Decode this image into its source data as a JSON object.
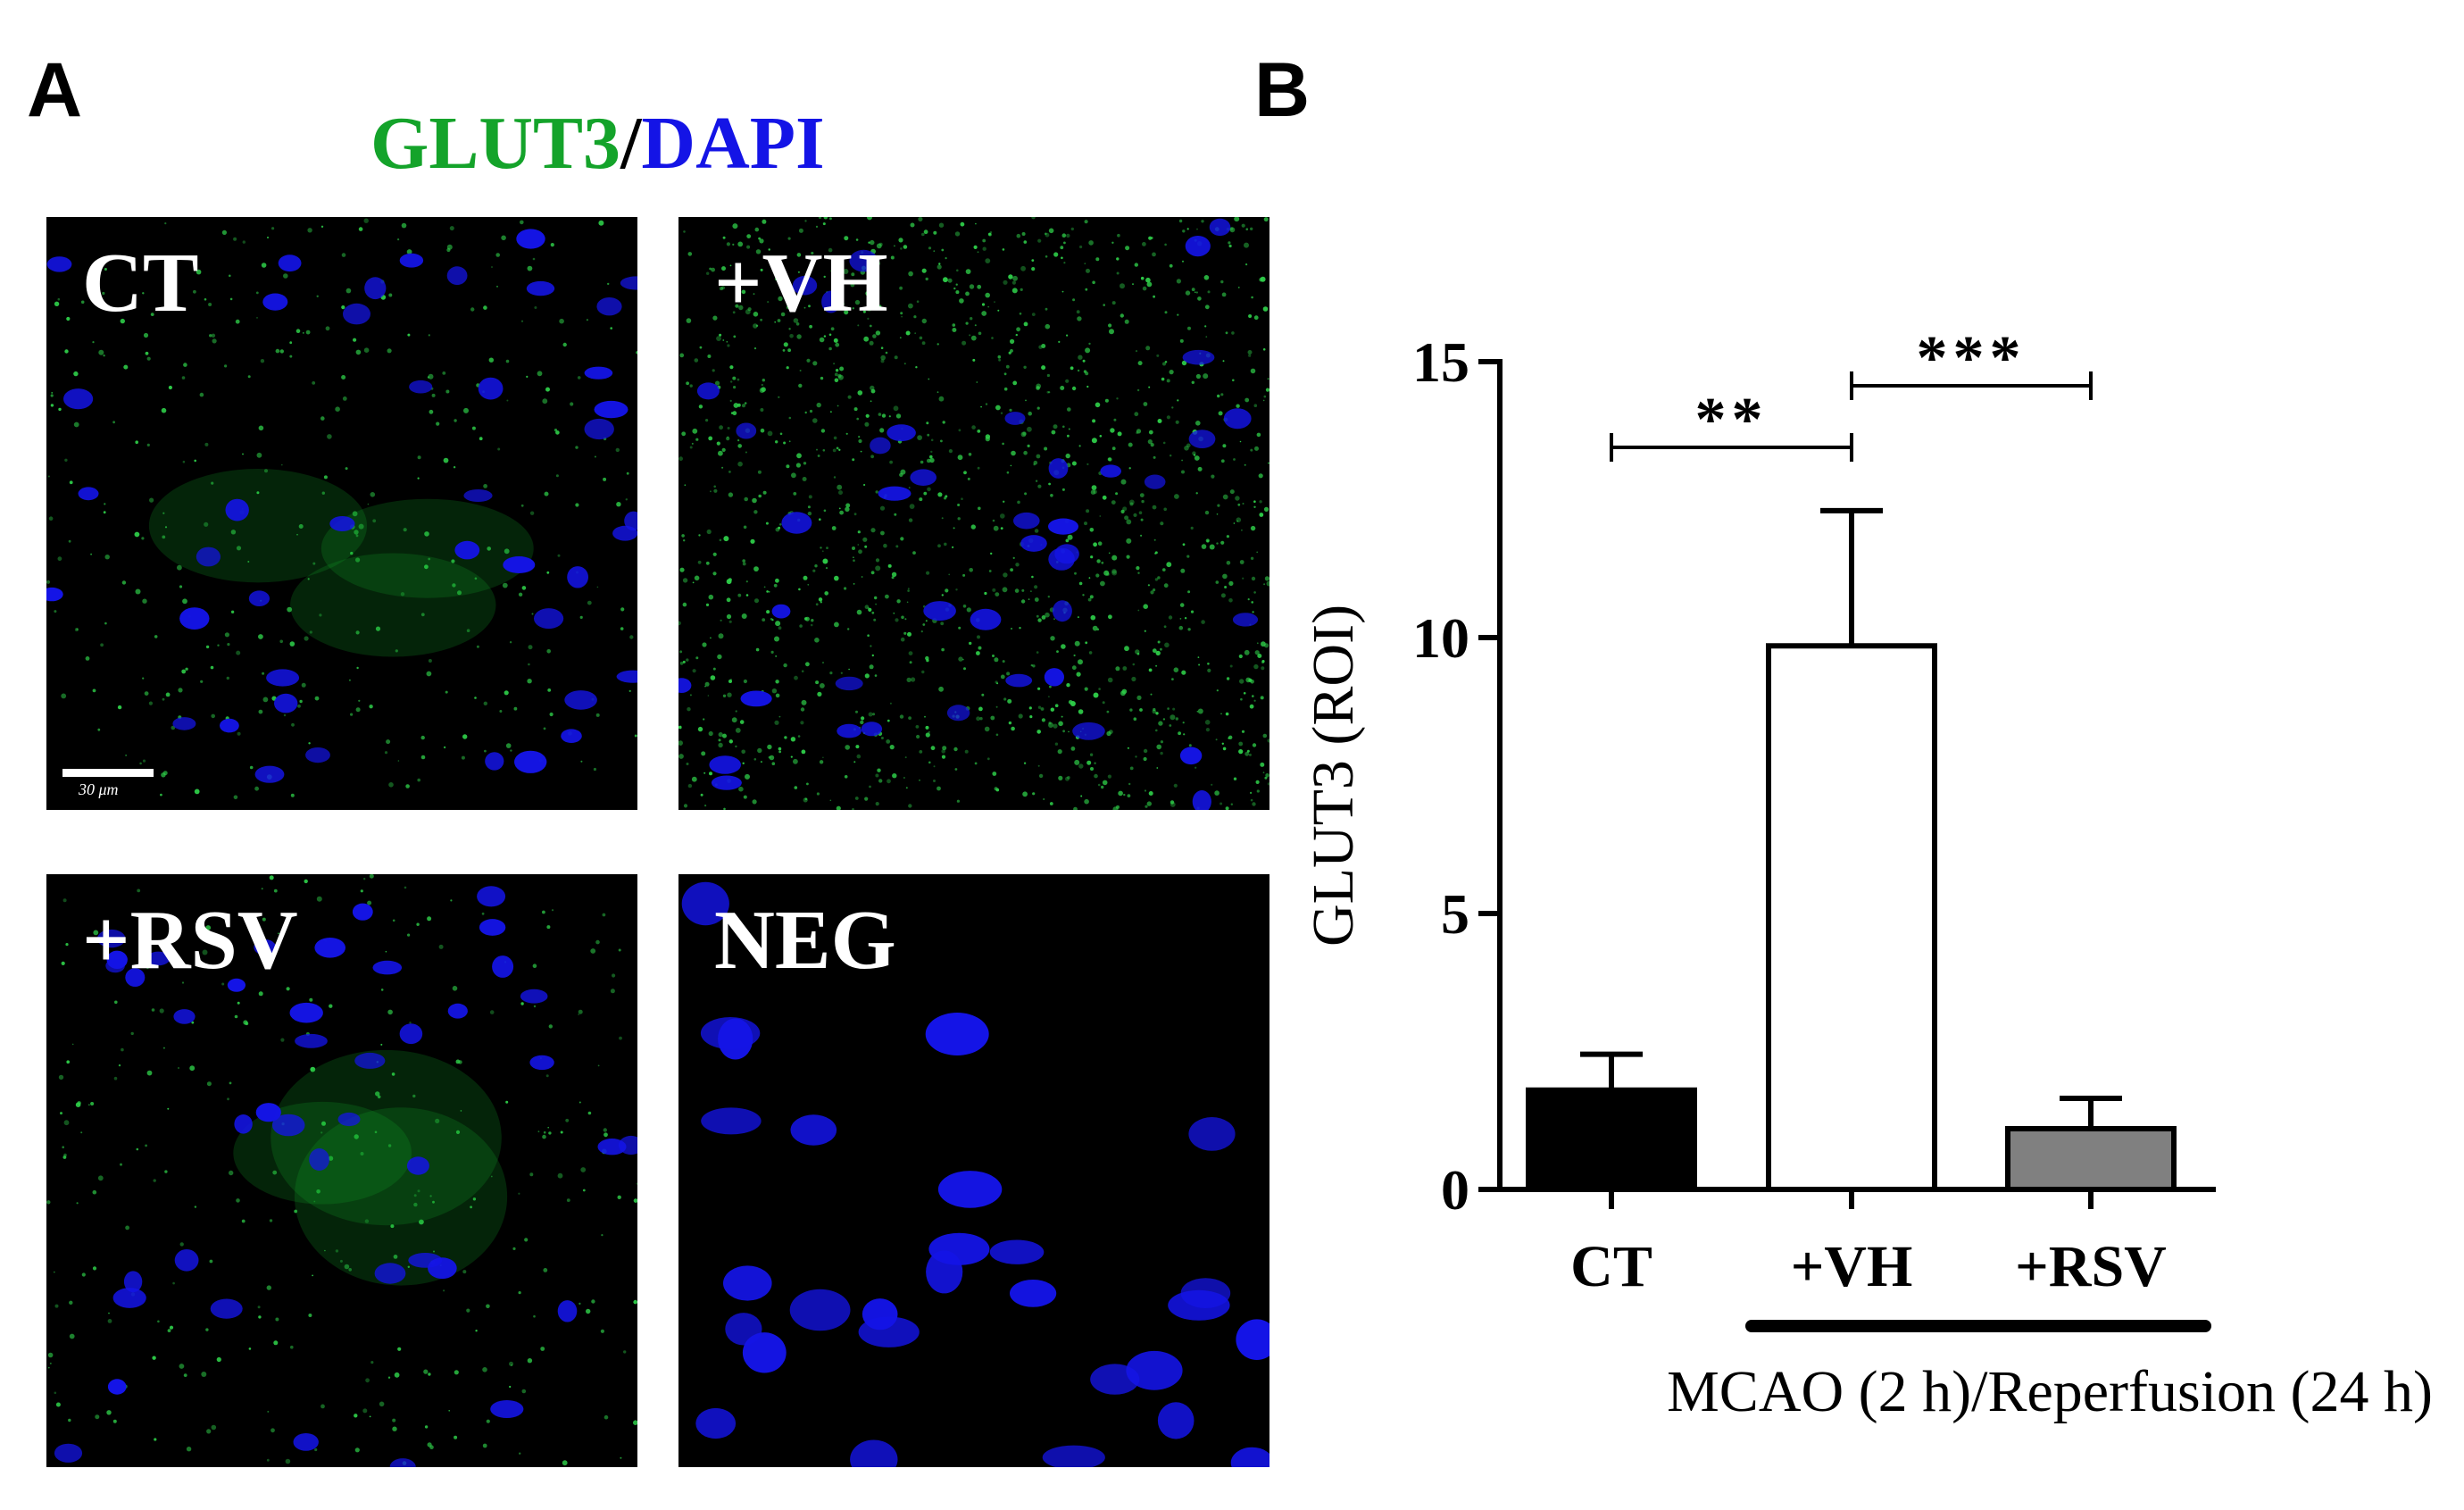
{
  "panels": {
    "a_label": "A",
    "b_label": "B"
  },
  "stain_title": {
    "marker": "GLUT3",
    "separator": "/",
    "counterstain": "DAPI"
  },
  "colors": {
    "marker_green": "#14a32a",
    "dapi_blue": "#1414e6",
    "bar_ct": "#000000",
    "bar_vh": "#ffffff",
    "bar_rsv": "#808080"
  },
  "micrographs": [
    {
      "label": "CT",
      "green_density": 0.25,
      "scale_bar": "30 μm"
    },
    {
      "label": "+VH",
      "green_density": 1.0,
      "scale_bar": ""
    },
    {
      "label": "+RSV",
      "green_density": 0.2,
      "scale_bar": ""
    },
    {
      "label": "NEG",
      "green_density": 0.0,
      "scale_bar": ""
    }
  ],
  "chart_data": {
    "type": "bar",
    "categories": [
      "CT",
      "+VH",
      "+RSV"
    ],
    "values": [
      1.8,
      9.85,
      1.1
    ],
    "errors": [
      0.65,
      2.45,
      0.55
    ],
    "ylabel": "GLUT3 (ROI)",
    "ylim": [
      0,
      15
    ],
    "yticks": [
      "0",
      "5",
      "10",
      "15"
    ],
    "significance": [
      {
        "from": "CT",
        "to": "+VH",
        "label": "**"
      },
      {
        "from": "+VH",
        "to": "+RSV",
        "label": "***"
      }
    ],
    "group_label": "MCAO (2 h)/Reperfusion (24 h)"
  }
}
